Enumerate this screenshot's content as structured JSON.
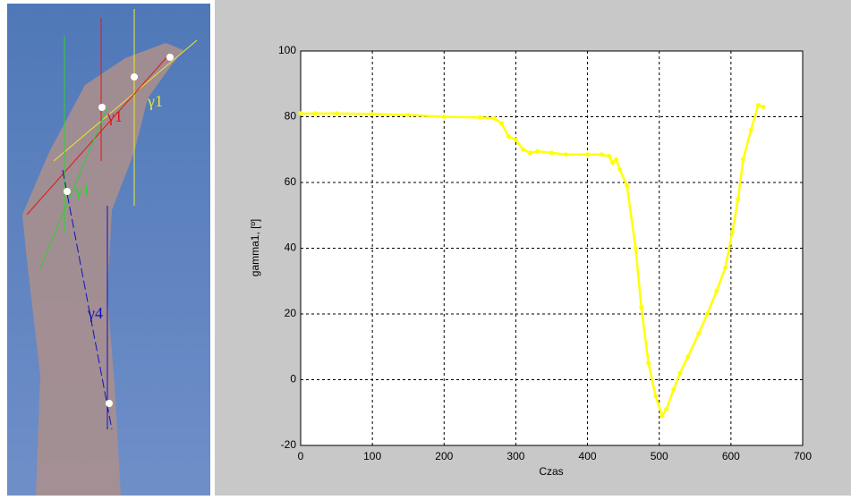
{
  "photo_labels": [
    {
      "text": "γ1",
      "color": "#e01818"
    },
    {
      "text": "γ1",
      "color": "#e8e830"
    },
    {
      "text": "γ1",
      "color": "#30d030"
    },
    {
      "text": "γ4",
      "color": "#1010c0"
    }
  ],
  "chart_data": {
    "type": "line",
    "x_label": "Czas",
    "y_label": "gamma1, [º]",
    "x": [
      0,
      20,
      50,
      100,
      150,
      200,
      250,
      270,
      280,
      290,
      300,
      310,
      320,
      330,
      350,
      370,
      400,
      420,
      430,
      435,
      440,
      445,
      455,
      467,
      475,
      485,
      495,
      504,
      510,
      520,
      529,
      540,
      555,
      567,
      580,
      592,
      602,
      610,
      617,
      628,
      638,
      645
    ],
    "series": [
      {
        "name": "gamma1",
        "color": "#ffff00",
        "values": [
          81,
          81,
          81,
          80.8,
          80.5,
          80,
          79.8,
          79.5,
          78,
          74,
          73,
          70,
          69,
          69.5,
          69,
          68.5,
          68.5,
          68.5,
          68,
          66,
          67,
          64,
          59,
          40,
          22,
          5,
          -5,
          -11,
          -9,
          -3,
          2,
          7,
          14,
          20,
          27,
          34,
          45,
          55,
          67,
          76,
          83.5,
          83
        ]
      }
    ],
    "xlim": [
      0,
      700
    ],
    "xticks": [
      0,
      100,
      200,
      300,
      400,
      500,
      600,
      700
    ],
    "ylim": [
      -20,
      100
    ],
    "yticks": [
      -20,
      0,
      20,
      40,
      60,
      80,
      100
    ],
    "grid": true
  }
}
